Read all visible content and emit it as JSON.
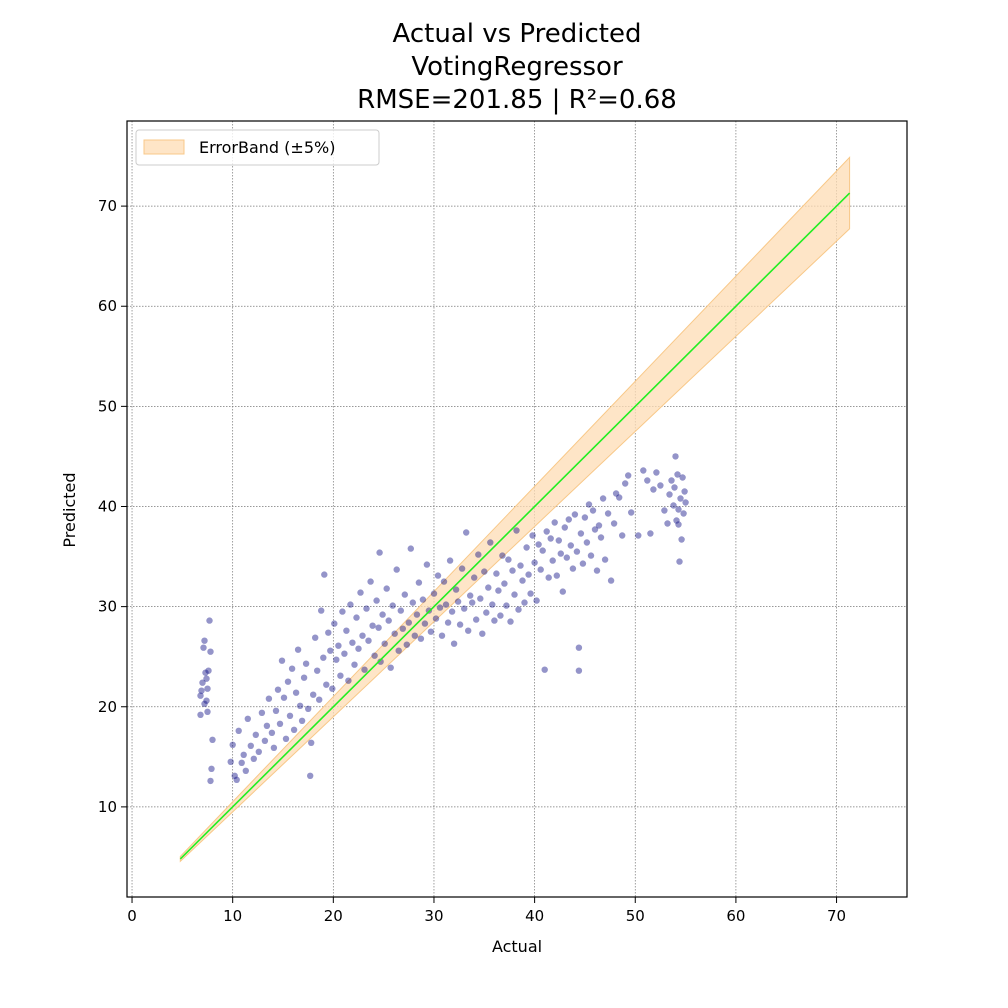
{
  "chart_data": {
    "type": "scatter",
    "title_lines": [
      "Actual vs Predicted",
      "VotingRegressor",
      "RMSE=201.85   |   R²=0.68"
    ],
    "xlabel": "Actual",
    "ylabel": "Predicted",
    "xlim": [
      -0.5,
      77
    ],
    "ylim": [
      1,
      78.5
    ],
    "xticks": [
      0,
      10,
      20,
      30,
      40,
      50,
      60,
      70
    ],
    "yticks": [
      10,
      20,
      30,
      40,
      50,
      60,
      70
    ],
    "grid": true,
    "legend": {
      "placement": "top-left",
      "entries": [
        {
          "label": "ErrorBand (±5%)"
        }
      ]
    },
    "reference_line": {
      "from": [
        4.8,
        4.8
      ],
      "to": [
        71.3,
        71.3
      ]
    },
    "error_band": {
      "fraction": 0.05
    },
    "colors": {
      "points": "#00007f",
      "line": "#22ee22",
      "band_fill": "#fddcb4",
      "band_edge": "#f8c888",
      "grid": "#777777"
    },
    "points": [
      [
        6.8,
        19.2
      ],
      [
        6.8,
        21.1
      ],
      [
        7.0,
        22.4
      ],
      [
        7.1,
        25.9
      ],
      [
        7.2,
        26.6
      ],
      [
        7.3,
        23.4
      ],
      [
        7.4,
        20.6
      ],
      [
        7.5,
        21.8
      ],
      [
        7.6,
        23.6
      ],
      [
        7.7,
        28.6
      ],
      [
        7.8,
        12.6
      ],
      [
        7.9,
        13.8
      ],
      [
        8.0,
        16.7
      ],
      [
        6.9,
        21.6
      ],
      [
        7.2,
        20.3
      ],
      [
        7.4,
        22.8
      ],
      [
        7.5,
        19.5
      ],
      [
        7.8,
        25.5
      ],
      [
        9.8,
        14.5
      ],
      [
        10.0,
        16.2
      ],
      [
        10.2,
        13.1
      ],
      [
        10.4,
        12.7
      ],
      [
        10.6,
        17.6
      ],
      [
        10.9,
        14.4
      ],
      [
        11.1,
        15.2
      ],
      [
        11.3,
        13.6
      ],
      [
        11.5,
        18.8
      ],
      [
        11.8,
        16.1
      ],
      [
        12.1,
        14.8
      ],
      [
        12.3,
        17.2
      ],
      [
        12.6,
        15.5
      ],
      [
        12.9,
        19.4
      ],
      [
        13.2,
        16.6
      ],
      [
        13.4,
        18.1
      ],
      [
        13.6,
        20.8
      ],
      [
        13.9,
        17.4
      ],
      [
        14.1,
        15.9
      ],
      [
        14.3,
        19.6
      ],
      [
        14.5,
        21.7
      ],
      [
        14.7,
        18.3
      ],
      [
        14.9,
        24.6
      ],
      [
        15.1,
        20.9
      ],
      [
        15.3,
        16.8
      ],
      [
        15.5,
        22.5
      ],
      [
        15.7,
        19.1
      ],
      [
        15.9,
        23.8
      ],
      [
        16.1,
        17.7
      ],
      [
        16.3,
        21.4
      ],
      [
        16.5,
        25.7
      ],
      [
        16.7,
        20.1
      ],
      [
        16.9,
        18.6
      ],
      [
        17.1,
        22.9
      ],
      [
        17.3,
        24.3
      ],
      [
        17.5,
        19.8
      ],
      [
        17.7,
        13.1
      ],
      [
        17.8,
        16.4
      ],
      [
        18.0,
        21.2
      ],
      [
        18.2,
        26.9
      ],
      [
        18.4,
        23.6
      ],
      [
        18.6,
        20.7
      ],
      [
        18.8,
        29.6
      ],
      [
        19.0,
        24.9
      ],
      [
        19.1,
        33.2
      ],
      [
        19.3,
        22.2
      ],
      [
        19.5,
        27.4
      ],
      [
        19.7,
        25.6
      ],
      [
        19.9,
        21.8
      ],
      [
        20.1,
        28.3
      ],
      [
        20.3,
        24.7
      ],
      [
        20.5,
        26.1
      ],
      [
        20.7,
        23.1
      ],
      [
        20.9,
        29.5
      ],
      [
        21.1,
        25.3
      ],
      [
        21.3,
        27.6
      ],
      [
        21.5,
        22.6
      ],
      [
        21.7,
        30.2
      ],
      [
        21.9,
        26.4
      ],
      [
        22.1,
        24.2
      ],
      [
        22.3,
        28.9
      ],
      [
        22.5,
        25.8
      ],
      [
        22.7,
        31.4
      ],
      [
        22.9,
        27.1
      ],
      [
        23.1,
        23.7
      ],
      [
        23.3,
        29.8
      ],
      [
        23.5,
        26.6
      ],
      [
        23.7,
        32.5
      ],
      [
        23.9,
        28.1
      ],
      [
        24.1,
        25.1
      ],
      [
        24.3,
        30.6
      ],
      [
        24.5,
        27.9
      ],
      [
        24.6,
        35.4
      ],
      [
        24.7,
        24.5
      ],
      [
        24.9,
        29.2
      ],
      [
        25.1,
        26.3
      ],
      [
        25.3,
        31.8
      ],
      [
        25.5,
        28.6
      ],
      [
        25.7,
        23.9
      ],
      [
        25.9,
        30.1
      ],
      [
        26.1,
        27.3
      ],
      [
        26.3,
        33.7
      ],
      [
        26.5,
        25.6
      ],
      [
        26.7,
        29.6
      ],
      [
        26.9,
        27.8
      ],
      [
        27.1,
        31.2
      ],
      [
        27.3,
        26.2
      ],
      [
        27.5,
        28.4
      ],
      [
        27.7,
        35.8
      ],
      [
        27.9,
        30.4
      ],
      [
        28.1,
        27.1
      ],
      [
        28.3,
        29.2
      ],
      [
        28.5,
        32.4
      ],
      [
        28.7,
        26.8
      ],
      [
        28.9,
        30.7
      ],
      [
        29.1,
        28.3
      ],
      [
        29.3,
        34.2
      ],
      [
        29.5,
        29.6
      ],
      [
        29.7,
        27.5
      ],
      [
        30.0,
        31.3
      ],
      [
        30.2,
        28.8
      ],
      [
        30.4,
        33.1
      ],
      [
        30.6,
        29.9
      ],
      [
        30.8,
        27.1
      ],
      [
        31.0,
        32.5
      ],
      [
        31.2,
        30.2
      ],
      [
        31.4,
        28.4
      ],
      [
        31.6,
        34.6
      ],
      [
        31.8,
        29.5
      ],
      [
        32.0,
        26.3
      ],
      [
        32.2,
        31.7
      ],
      [
        32.4,
        30.5
      ],
      [
        32.6,
        28.2
      ],
      [
        32.8,
        33.8
      ],
      [
        33.0,
        29.8
      ],
      [
        33.2,
        37.4
      ],
      [
        33.4,
        27.6
      ],
      [
        33.6,
        31.1
      ],
      [
        33.8,
        30.4
      ],
      [
        34.0,
        32.9
      ],
      [
        34.2,
        28.7
      ],
      [
        34.4,
        35.2
      ],
      [
        34.6,
        30.8
      ],
      [
        34.8,
        27.3
      ],
      [
        35.0,
        33.5
      ],
      [
        35.2,
        29.4
      ],
      [
        35.4,
        31.9
      ],
      [
        35.6,
        36.4
      ],
      [
        35.8,
        30.2
      ],
      [
        36.0,
        28.6
      ],
      [
        36.2,
        33.3
      ],
      [
        36.4,
        31.6
      ],
      [
        36.6,
        29.1
      ],
      [
        36.8,
        35.1
      ],
      [
        37.0,
        32.3
      ],
      [
        37.2,
        30.1
      ],
      [
        37.4,
        34.7
      ],
      [
        37.6,
        28.5
      ],
      [
        37.8,
        33.6
      ],
      [
        38.0,
        31.2
      ],
      [
        38.2,
        37.6
      ],
      [
        38.4,
        29.7
      ],
      [
        38.6,
        34.1
      ],
      [
        38.8,
        32.6
      ],
      [
        39.0,
        30.4
      ],
      [
        39.2,
        35.9
      ],
      [
        39.4,
        33.2
      ],
      [
        39.6,
        31.3
      ],
      [
        39.8,
        37.1
      ],
      [
        40.0,
        34.4
      ],
      [
        40.2,
        30.6
      ],
      [
        40.4,
        36.2
      ],
      [
        40.6,
        33.7
      ],
      [
        40.8,
        35.6
      ],
      [
        41.0,
        23.7
      ],
      [
        41.2,
        37.5
      ],
      [
        41.4,
        32.9
      ],
      [
        41.6,
        36.8
      ],
      [
        41.8,
        34.6
      ],
      [
        42.0,
        38.4
      ],
      [
        42.2,
        33.1
      ],
      [
        42.4,
        36.6
      ],
      [
        42.6,
        35.3
      ],
      [
        42.8,
        31.5
      ],
      [
        43.0,
        37.9
      ],
      [
        43.2,
        34.9
      ],
      [
        43.4,
        38.7
      ],
      [
        43.6,
        36.1
      ],
      [
        43.8,
        33.8
      ],
      [
        44.0,
        39.2
      ],
      [
        44.2,
        35.5
      ],
      [
        44.4,
        23.6
      ],
      [
        44.4,
        25.9
      ],
      [
        44.6,
        37.3
      ],
      [
        44.8,
        34.3
      ],
      [
        45.0,
        38.9
      ],
      [
        45.2,
        36.4
      ],
      [
        45.4,
        40.2
      ],
      [
        45.6,
        35.1
      ],
      [
        45.8,
        39.6
      ],
      [
        46.0,
        37.7
      ],
      [
        46.2,
        33.6
      ],
      [
        46.4,
        38.1
      ],
      [
        46.6,
        36.9
      ],
      [
        46.8,
        40.8
      ],
      [
        47.0,
        34.7
      ],
      [
        47.3,
        39.3
      ],
      [
        47.6,
        32.6
      ],
      [
        47.9,
        38.3
      ],
      [
        48.1,
        41.3
      ],
      [
        48.4,
        40.9
      ],
      [
        48.7,
        37.1
      ],
      [
        49.0,
        42.3
      ],
      [
        49.3,
        43.1
      ],
      [
        49.6,
        39.4
      ],
      [
        50.3,
        37.1
      ],
      [
        50.8,
        43.6
      ],
      [
        51.2,
        42.6
      ],
      [
        51.5,
        37.3
      ],
      [
        51.8,
        41.7
      ],
      [
        52.1,
        43.4
      ],
      [
        52.5,
        42.1
      ],
      [
        52.9,
        39.6
      ],
      [
        53.2,
        38.3
      ],
      [
        53.4,
        41.2
      ],
      [
        53.6,
        42.6
      ],
      [
        53.8,
        40.1
      ],
      [
        54.0,
        45.0
      ],
      [
        54.1,
        38.6
      ],
      [
        54.2,
        43.2
      ],
      [
        54.3,
        39.7
      ],
      [
        54.4,
        34.5
      ],
      [
        54.5,
        40.8
      ],
      [
        54.6,
        36.7
      ],
      [
        54.7,
        42.9
      ],
      [
        54.8,
        39.3
      ],
      [
        54.9,
        41.5
      ],
      [
        55.0,
        40.4
      ],
      [
        54.3,
        38.2
      ],
      [
        53.9,
        41.9
      ]
    ]
  }
}
